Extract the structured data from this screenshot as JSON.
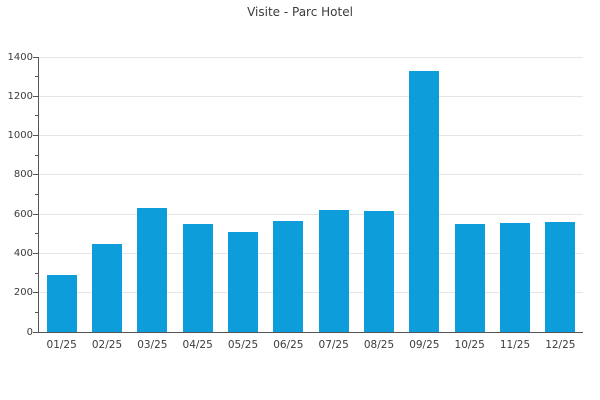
{
  "title": "Visite - Parc Hotel",
  "colors": {
    "bar": "#0d9ddb",
    "grid": "#e6e6e6",
    "axis": "#555555",
    "text": "#3c3c3c",
    "background": "#ffffff"
  },
  "chart_data": {
    "type": "bar",
    "title": "Visite - Parc Hotel",
    "categories": [
      "01/25",
      "02/25",
      "03/25",
      "04/25",
      "05/25",
      "06/25",
      "07/25",
      "08/25",
      "09/25",
      "10/25",
      "11/25",
      "12/25"
    ],
    "values": [
      290,
      450,
      630,
      550,
      510,
      565,
      620,
      615,
      1330,
      550,
      555,
      560
    ],
    "xlabel": "",
    "ylabel": "",
    "ylim": [
      0,
      1400
    ],
    "yticks": [
      0,
      200,
      400,
      600,
      800,
      1000,
      1200,
      1400
    ],
    "y_minor_ticks": [
      100,
      300,
      500,
      700,
      900,
      1100,
      1300
    ],
    "grid": "horizontal-major",
    "legend": "none",
    "bar_color": "#0d9ddb"
  }
}
